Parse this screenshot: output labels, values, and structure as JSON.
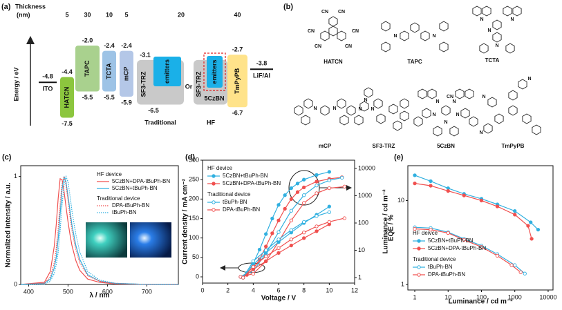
{
  "energy_diagram": {
    "panel_label": "(a)",
    "thickness_label": "Thickness",
    "thickness_unit": "(nm)",
    "axis_label": "Energy / eV",
    "electrodes": [
      {
        "name": "ITO",
        "level": -4.8
      },
      {
        "name": "LiF/Al",
        "level": -3.8
      }
    ],
    "layers": [
      {
        "name": "HATCN",
        "thickness": 5,
        "lumo": -4.4,
        "homo": -7.5,
        "color": "#8cc63e"
      },
      {
        "name": "TAPC",
        "thickness": 30,
        "lumo": {
          "value": -2.0,
          "label": "-2.0"
        },
        "homo": -5.5,
        "color": "#a9d18e"
      },
      {
        "name": "TCTA",
        "thickness": 10,
        "lumo": -2.4,
        "homo": -5.5,
        "color": "#9dc3e6"
      },
      {
        "name": "mCP",
        "thickness": 5,
        "lumo": -2.4,
        "homo": -5.9,
        "color": "#b4c7e7"
      },
      {
        "name": "TmPyPB",
        "thickness": 40,
        "lumo": -2.7,
        "homo": -6.7,
        "color": "#ffe38a"
      }
    ],
    "emission_layer": {
      "thickness": 20,
      "host": "SF3-TRZ",
      "lumo": -3.1,
      "homo": -6.5,
      "host_color": "#c9c9c9",
      "emitter": "emitters",
      "emitter_color": "#1ab0e8",
      "sensitizer": "5CzBN",
      "outline_color": "#e02020",
      "traditional_label": "Traditional",
      "hf_label": "HF",
      "or_label": "Or"
    }
  },
  "structures": {
    "panel_label": "(b)",
    "molecules": [
      {
        "name": "HATCN",
        "atoms": [
          "CN",
          "CN",
          "CN",
          "CN",
          "CN",
          "CN"
        ]
      },
      {
        "name": "TAPC",
        "atoms": [
          "N",
          "N"
        ]
      },
      {
        "name": "TCTA",
        "atoms": [
          "N",
          "N",
          "N",
          "N"
        ]
      },
      {
        "name": "mCP",
        "atoms": [
          "N",
          "N"
        ]
      },
      {
        "name": "SF3-TRZ",
        "atoms": [
          "N",
          "N",
          "N"
        ]
      },
      {
        "name": "5CzBN",
        "atoms": [
          "CN",
          "N",
          "N",
          "N",
          "N",
          "N"
        ]
      },
      {
        "name": "TmPyPB",
        "atoms": [
          "N",
          "N",
          "N"
        ]
      }
    ]
  },
  "chart_data": [
    {
      "type": "line",
      "panel_label": "(c)",
      "x_label": "λ / nm",
      "y_label": "Normalized intensity / a.u.",
      "x": [
        380,
        440,
        455,
        465,
        470,
        475,
        480,
        485,
        490,
        495,
        500,
        505,
        510,
        520,
        530,
        550,
        580,
        620,
        700,
        780
      ],
      "xlim": [
        380,
        780
      ],
      "xticks": [
        400,
        500,
        600,
        700
      ],
      "ylim": [
        0,
        1.1
      ],
      "yticks": [
        0,
        1
      ],
      "legend_titles": [
        "HF device",
        "Traditional device"
      ],
      "series": [
        {
          "name": "5CzBN+DPA-tBuPh-BN",
          "color": "#f0504f",
          "dash": "solid",
          "values": [
            0,
            0.02,
            0.12,
            0.35,
            0.55,
            0.8,
            0.98,
            0.97,
            0.86,
            0.72,
            0.58,
            0.46,
            0.36,
            0.22,
            0.13,
            0.05,
            0.02,
            0.005,
            0,
            0
          ]
        },
        {
          "name": "5CzBN+tBuPh-BN",
          "color": "#31b0e0",
          "dash": "solid",
          "values": [
            0,
            0.01,
            0.05,
            0.15,
            0.25,
            0.42,
            0.65,
            0.88,
            1.0,
            0.95,
            0.82,
            0.68,
            0.55,
            0.36,
            0.23,
            0.09,
            0.03,
            0.01,
            0,
            0
          ]
        },
        {
          "name": "DPA-tBuPh-BN",
          "color": "#f0504f",
          "dash": "dotted",
          "values": [
            0,
            0.01,
            0.07,
            0.2,
            0.33,
            0.52,
            0.75,
            0.93,
            1.0,
            0.92,
            0.78,
            0.63,
            0.5,
            0.32,
            0.2,
            0.08,
            0.03,
            0.01,
            0,
            0
          ]
        },
        {
          "name": "tBuPh-BN",
          "color": "#31b0e0",
          "dash": "dotted",
          "values": [
            0,
            0,
            0.03,
            0.1,
            0.18,
            0.3,
            0.5,
            0.74,
            0.92,
            1.0,
            0.95,
            0.82,
            0.68,
            0.46,
            0.3,
            0.12,
            0.04,
            0.01,
            0,
            0
          ]
        }
      ]
    },
    {
      "type": "line",
      "panel_label": "(d)",
      "x_label": "Voltage / V",
      "y_label": "Current density / mA cm⁻²",
      "y2_label": "Luminance / cd m⁻²",
      "xlim": [
        0,
        12
      ],
      "xticks": [
        0,
        2,
        4,
        6,
        8,
        10,
        12
      ],
      "ylim": [
        -16,
        300
      ],
      "yticks": [
        0,
        50,
        100,
        150,
        200,
        250,
        300
      ],
      "y2lim": [
        0.63,
        20000
      ],
      "y2ticks": [
        1,
        10,
        100,
        1000,
        10000
      ],
      "y2_log": true,
      "legend_titles": [
        "HF device",
        "Traditional device"
      ],
      "series": [
        {
          "name": "5CzBN+tBuPh-BN",
          "color": "#31b0e0",
          "marker": "filled",
          "x": [
            3,
            3.5,
            4,
            4.5,
            5,
            5.5,
            6,
            6.5,
            7,
            7.5,
            8,
            9,
            10
          ],
          "values": [
            0,
            10,
            35,
            70,
            110,
            150,
            185,
            210,
            228,
            240,
            250,
            262,
            270
          ]
        },
        {
          "name": "5CzBN+DPA-tBuPh-BN",
          "color": "#f0504f",
          "marker": "filled",
          "x": [
            3,
            3.5,
            4,
            4.5,
            5,
            5.5,
            6,
            6.5,
            7,
            7.5,
            8,
            9,
            10,
            11
          ],
          "values": [
            0,
            5,
            20,
            45,
            78,
            112,
            145,
            175,
            200,
            218,
            230,
            245,
            252,
            256
          ]
        },
        {
          "name": "tBuPh-BN",
          "color": "#31b0e0",
          "marker": "open",
          "x": [
            3,
            4,
            5,
            6,
            7,
            8,
            9,
            10,
            11
          ],
          "values": [
            0,
            15,
            60,
            115,
            170,
            210,
            235,
            248,
            255
          ]
        },
        {
          "name": "DPA-tBuPh-BN",
          "color": "#f0504f",
          "marker": "open",
          "x": [
            3,
            4,
            5,
            6,
            7,
            8,
            9,
            10,
            11.2
          ],
          "values": [
            0,
            8,
            40,
            90,
            145,
            190,
            215,
            228,
            232
          ]
        },
        {
          "color": "#31b0e0",
          "marker": "filled",
          "axis": "y2",
          "x": [
            3.2,
            4,
            5,
            6,
            7,
            8,
            9,
            10
          ],
          "values": [
            1,
            3,
            8,
            20,
            45,
            100,
            200,
            400
          ]
        },
        {
          "color": "#f0504f",
          "marker": "filled",
          "axis": "y2",
          "x": [
            3.2,
            4,
            5,
            6,
            7,
            8,
            9,
            10
          ],
          "values": [
            1,
            2,
            4,
            8,
            15,
            28,
            50,
            90
          ]
        },
        {
          "color": "#31b0e0",
          "marker": "open",
          "axis": "y2",
          "x": [
            3.2,
            4,
            5,
            6,
            7,
            8,
            9,
            10
          ],
          "values": [
            1,
            4,
            10,
            25,
            55,
            110,
            180,
            250
          ]
        },
        {
          "color": "#f0504f",
          "marker": "open",
          "axis": "y2",
          "x": [
            3.2,
            4,
            5,
            6,
            7,
            8,
            9,
            10,
            11.2
          ],
          "values": [
            1,
            2.5,
            6,
            12,
            25,
            45,
            75,
            110,
            150
          ]
        }
      ]
    },
    {
      "type": "line",
      "panel_label": "(e)",
      "x_label": "Luminance / cd m⁻²",
      "y_label": "EQE / %",
      "x_log": true,
      "y_log": true,
      "xlim": [
        0.62,
        14000
      ],
      "xticks": [
        1,
        10,
        100,
        1000,
        10000
      ],
      "ylim": [
        0.86,
        26
      ],
      "yticks": [
        1,
        10
      ],
      "legend_titles": [
        "HF deivce",
        "Traditional device"
      ],
      "series": [
        {
          "name": "5CzBN+tBuPh-BN",
          "color": "#31b0e0",
          "marker": "filled",
          "x": [
            1,
            3,
            10,
            30,
            100,
            300,
            1000,
            3000,
            5000
          ],
          "values": [
            20,
            17,
            14,
            12,
            10.5,
            9,
            7.5,
            5.5,
            4.5
          ]
        },
        {
          "name": "5CzBN+DPA-tBuPh-BN",
          "color": "#f0504f",
          "marker": "filled",
          "x": [
            1,
            3,
            10,
            30,
            100,
            300,
            1000,
            2500,
            3200
          ],
          "values": [
            16,
            15,
            13,
            11.5,
            10,
            8.5,
            6.8,
            5,
            3.5
          ]
        },
        {
          "name": "tBuPh-BN",
          "color": "#31b0e0",
          "marker": "open",
          "x": [
            1,
            3,
            10,
            30,
            100,
            300,
            1000,
            2000
          ],
          "values": [
            4.8,
            4.7,
            4.2,
            3.5,
            2.9,
            2.3,
            1.7,
            1.35
          ]
        },
        {
          "name": "DPA-tBuPh-BN",
          "color": "#f0504f",
          "marker": "open",
          "x": [
            1,
            3,
            10,
            30,
            100,
            300,
            800,
            1500
          ],
          "values": [
            4.6,
            4.5,
            4.1,
            3.4,
            2.8,
            2.2,
            1.7,
            1.4
          ]
        }
      ]
    }
  ]
}
